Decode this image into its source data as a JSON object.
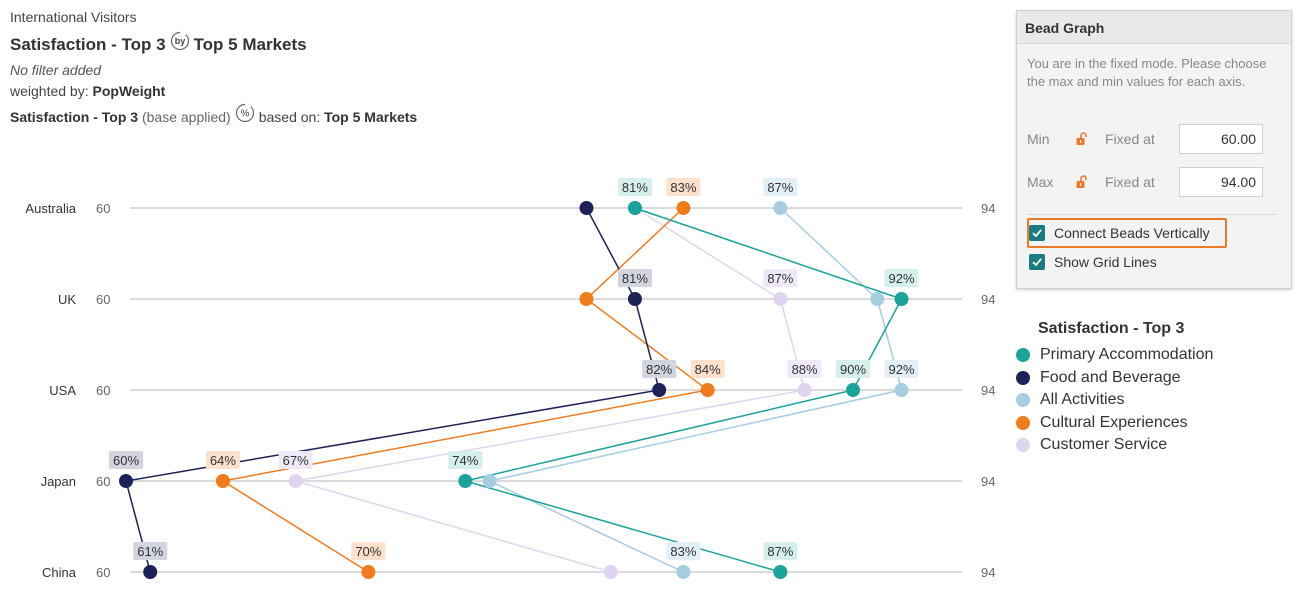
{
  "header": {
    "line1": "International Visitors",
    "title_left": "Satisfaction - Top 3",
    "by_icon_text": "by",
    "title_right": "Top 5 Markets",
    "filter_text": "No filter added",
    "weighted_prefix": "weighted by:",
    "weighted_value": "PopWeight",
    "base_measure": "Satisfaction - Top 3",
    "base_note": "(base applied)",
    "pct_icon_text": "%",
    "based_on_prefix": "based on:",
    "based_on_value": "Top 5 Markets"
  },
  "panel": {
    "title": "Bead Graph",
    "description": "You are in the fixed mode. Please choose the max and min values for each axis.",
    "min_label": "Min",
    "max_label": "Max",
    "fixed_label": "Fixed at",
    "min_value": "60.00",
    "max_value": "94.00",
    "connect_label": "Connect Beads Vertically",
    "grid_label": "Show Grid Lines",
    "lock_icon": "unlocked-padlock-icon",
    "accent_color": "#1b7b80",
    "highlight_color": "#ec7a2c"
  },
  "chart_data": {
    "type": "dot-plot",
    "title": "Satisfaction - Top 3",
    "axis_min": 60,
    "axis_max": 94,
    "axis_min_label": "60",
    "axis_max_label": "94",
    "connect_beads_vertically": true,
    "grid": true,
    "legend_position": "right",
    "categories": [
      "Australia",
      "UK",
      "USA",
      "Japan",
      "China"
    ],
    "series": [
      {
        "name": "Primary Accommodation",
        "color": "#1aa39a",
        "label_bg": "#d5efec",
        "values": [
          81,
          92,
          90,
          74,
          87
        ],
        "labels": [
          "81%",
          "92%",
          "90%",
          "74%",
          "87%"
        ]
      },
      {
        "name": "Food and Beverage",
        "color": "#1c2259",
        "label_bg": "#d2d4e0",
        "values": [
          79,
          81,
          82,
          60,
          61
        ],
        "labels": [
          "",
          "81%",
          "82%",
          "60%",
          "61%"
        ]
      },
      {
        "name": "All Activities",
        "color": "#a6cde0",
        "label_bg": "#e2eff6",
        "values": [
          87,
          91,
          92,
          75,
          83
        ],
        "labels": [
          "87%",
          "",
          "92%",
          "",
          "83%"
        ]
      },
      {
        "name": "Cultural Experiences",
        "color": "#f07c1c",
        "label_bg": "#fde1cc",
        "values": [
          83,
          79,
          84,
          64,
          70
        ],
        "labels": [
          "83%",
          "",
          "84%",
          "64%",
          "70%"
        ]
      },
      {
        "name": "Customer Service",
        "color": "#e0d5f0",
        "label_bg": "#efe9f7",
        "values": [
          81,
          87,
          88,
          67,
          80
        ],
        "labels": [
          "",
          "87%",
          "88%",
          "67%",
          ""
        ]
      }
    ]
  }
}
